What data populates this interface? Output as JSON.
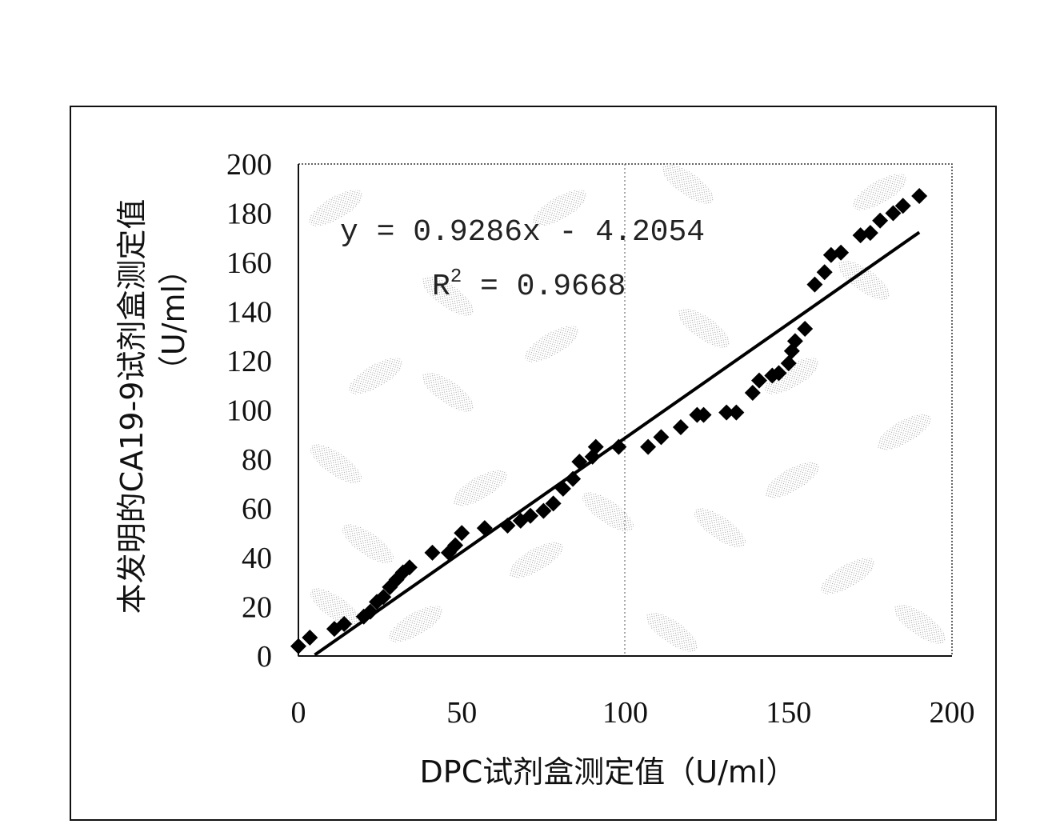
{
  "chart_data": {
    "type": "scatter",
    "title": "",
    "xlabel": "DPC试剂盒测定值（U/ml）",
    "ylabel": "本发明的CA19-9试剂盒测定值",
    "ylabel_unit": "（U/ml）",
    "xlim": [
      0,
      200
    ],
    "ylim": [
      0,
      200
    ],
    "x_ticks": [
      "0",
      "50",
      "100",
      "150",
      "200"
    ],
    "y_ticks": [
      "0",
      "20",
      "40",
      "60",
      "80",
      "100",
      "120",
      "140",
      "160",
      "180",
      "200"
    ],
    "grid": "vertical dotted line at x=100",
    "legend": "none",
    "marker": "diamond",
    "marker_color": "#000000",
    "trendline": {
      "slope": 0.9286,
      "intercept": -4.2054,
      "x_range": [
        5,
        190
      ],
      "color": "#000000"
    },
    "annotations": {
      "equation": "y = 0.9286x - 4.2054",
      "r2_label": "R",
      "r2_sup": "2",
      "r2_value": " = 0.9668"
    },
    "points": [
      [
        0,
        4
      ],
      [
        3.5,
        7.5
      ],
      [
        11,
        11
      ],
      [
        14,
        13
      ],
      [
        20,
        16
      ],
      [
        22,
        18
      ],
      [
        24,
        22
      ],
      [
        26,
        24
      ],
      [
        28,
        28
      ],
      [
        30,
        31
      ],
      [
        32,
        34
      ],
      [
        34,
        36
      ],
      [
        41,
        42
      ],
      [
        46,
        42
      ],
      [
        48,
        45
      ],
      [
        50,
        50
      ],
      [
        57,
        52
      ],
      [
        64,
        53
      ],
      [
        68,
        55
      ],
      [
        71,
        57
      ],
      [
        75,
        59
      ],
      [
        78,
        62
      ],
      [
        81,
        68
      ],
      [
        84,
        72
      ],
      [
        86,
        79
      ],
      [
        90,
        81
      ],
      [
        91,
        85
      ],
      [
        98,
        85
      ],
      [
        107,
        85
      ],
      [
        111,
        89
      ],
      [
        117,
        93
      ],
      [
        122,
        98
      ],
      [
        124,
        98
      ],
      [
        131,
        99
      ],
      [
        134,
        99
      ],
      [
        139,
        107
      ],
      [
        141,
        112
      ],
      [
        145,
        114
      ],
      [
        147,
        115
      ],
      [
        150,
        119
      ],
      [
        151,
        124
      ],
      [
        152,
        128
      ],
      [
        155,
        133
      ],
      [
        158,
        151
      ],
      [
        161,
        156
      ],
      [
        163,
        163
      ],
      [
        166,
        164
      ],
      [
        172,
        171
      ],
      [
        175,
        172
      ],
      [
        178,
        177
      ],
      [
        182,
        180
      ],
      [
        185,
        183
      ],
      [
        190,
        187
      ]
    ]
  }
}
